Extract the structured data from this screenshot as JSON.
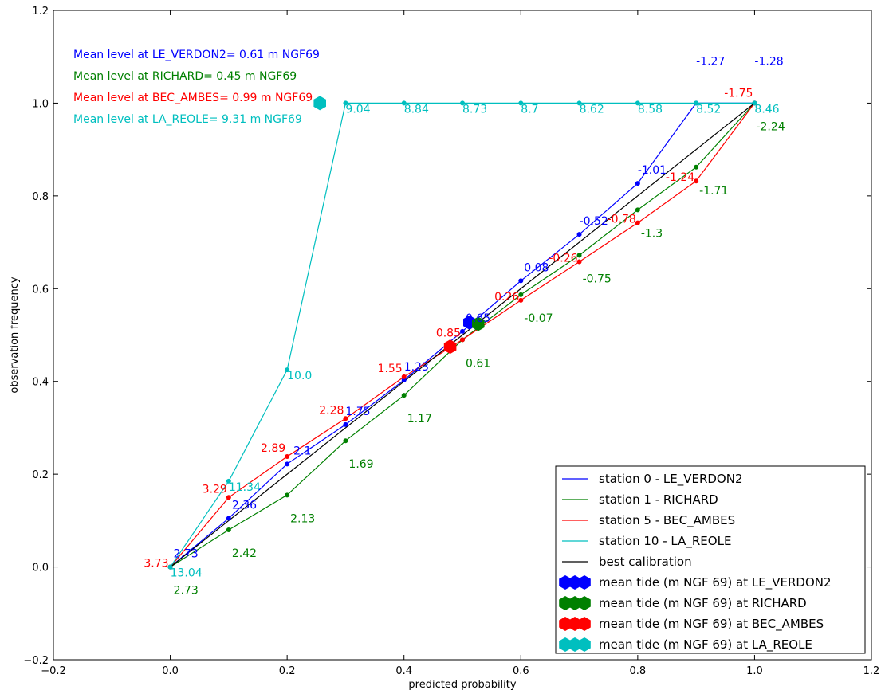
{
  "chart_data": {
    "type": "line",
    "xlabel": "predicted probability",
    "ylabel": "observation frequency",
    "xlim": [
      -0.2,
      1.2
    ],
    "ylim": [
      -0.2,
      1.2
    ],
    "x_ticks": [
      -0.2,
      0.0,
      0.2,
      0.4,
      0.6,
      0.8,
      1.0,
      1.2
    ],
    "y_ticks": [
      -0.2,
      0.0,
      0.2,
      0.4,
      0.6,
      0.8,
      1.0,
      1.2
    ],
    "x_tick_labels": [
      "−0.2",
      "0.0",
      "0.2",
      "0.4",
      "0.6",
      "0.8",
      "1.0",
      "1.2"
    ],
    "y_tick_labels": [
      "−0.2",
      "0.0",
      "0.2",
      "0.4",
      "0.6",
      "0.8",
      "1.0",
      "1.2"
    ],
    "grid": false,
    "legend_position": "bottom-right",
    "series": [
      {
        "name": "station 0 - LE_VERDON2",
        "color": "#0000ff",
        "x": [
          0.0,
          0.1,
          0.2,
          0.3,
          0.4,
          0.5,
          0.6,
          0.7,
          0.8,
          0.9,
          1.0
        ],
        "y": [
          0.0,
          0.105,
          0.222,
          0.307,
          0.403,
          0.508,
          0.617,
          0.717,
          0.827,
          1.0,
          1.0
        ],
        "point_labels": [
          "2.73",
          "2.36",
          "2.1",
          "1.75",
          "1.23",
          "0.65",
          "0.08",
          "-0.52",
          "-1.01",
          "-1.27",
          "-1.28"
        ],
        "label_dx": [
          4,
          4,
          8,
          0,
          0,
          4,
          4,
          0,
          0,
          0,
          0
        ],
        "label_dy": [
          -12,
          -12,
          -12,
          -12,
          -12,
          -12,
          -12,
          -12,
          -12,
          -48,
          -48
        ],
        "label_anchor": [
          "start",
          "start",
          "start",
          "start",
          "start",
          "start",
          "start",
          "start",
          "start",
          "start",
          "start"
        ]
      },
      {
        "name": "station 1 - RICHARD",
        "color": "#008000",
        "x": [
          0.0,
          0.1,
          0.2,
          0.3,
          0.4,
          0.5,
          0.6,
          0.7,
          0.8,
          0.9,
          1.0
        ],
        "y": [
          0.0,
          0.08,
          0.155,
          0.272,
          0.37,
          0.49,
          0.587,
          0.672,
          0.77,
          0.862,
          1.0
        ],
        "point_labels": [
          "2.73",
          "2.42",
          "2.13",
          "1.69",
          "1.17",
          "0.61",
          "-0.07",
          "-0.75",
          "-1.3",
          "-1.71",
          "-2.24"
        ],
        "label_dx": [
          4,
          4,
          4,
          4,
          4,
          4,
          4,
          4,
          4,
          4,
          2
        ],
        "label_dy": [
          34,
          34,
          34,
          34,
          34,
          34,
          34,
          34,
          34,
          34,
          34
        ],
        "label_anchor": [
          "start",
          "start",
          "start",
          "start",
          "start",
          "start",
          "start",
          "start",
          "start",
          "start",
          "start"
        ]
      },
      {
        "name": "station 5 - BEC_AMBES",
        "color": "#ff0000",
        "x": [
          0.0,
          0.1,
          0.2,
          0.3,
          0.4,
          0.5,
          0.6,
          0.7,
          0.8,
          0.9,
          1.0
        ],
        "y": [
          0.0,
          0.15,
          0.238,
          0.32,
          0.41,
          0.49,
          0.575,
          0.658,
          0.742,
          0.832,
          1.0
        ],
        "point_labels": [
          "3.73",
          "3.29",
          "2.89",
          "2.28",
          "1.55",
          "0.85",
          "0.26",
          "-0.26",
          "-0.78",
          "-1.24",
          "-1.75"
        ],
        "label_dx": [
          -2,
          -2,
          -2,
          -2,
          -2,
          -2,
          -2,
          -2,
          -2,
          -2,
          -2
        ],
        "label_dy": [
          0,
          -6,
          -6,
          -6,
          -6,
          -4,
          0,
          0,
          0,
          0,
          -8
        ],
        "label_anchor": [
          "end",
          "end",
          "end",
          "end",
          "end",
          "end",
          "end",
          "end",
          "end",
          "end",
          "end"
        ]
      },
      {
        "name": "station 10 - LA_REOLE",
        "color": "#00bfbf",
        "x": [
          0.0,
          0.1,
          0.2,
          0.3,
          0.4,
          0.5,
          0.6,
          0.7,
          0.8,
          0.9,
          1.0
        ],
        "y": [
          0.0,
          0.185,
          0.425,
          1.0,
          1.0,
          1.0,
          1.0,
          1.0,
          1.0,
          1.0,
          1.0
        ],
        "point_labels": [
          "13.04",
          "11.34",
          "10.0",
          "9.04",
          "8.84",
          "8.73",
          "8.7",
          "8.62",
          "8.58",
          "8.52",
          "8.46"
        ],
        "label_dx": [
          0,
          0,
          0,
          0,
          0,
          0,
          0,
          0,
          0,
          0,
          0
        ],
        "label_dy": [
          12,
          12,
          12,
          12,
          12,
          12,
          12,
          12,
          12,
          12,
          12
        ],
        "label_anchor": [
          "start",
          "start",
          "start",
          "start",
          "start",
          "start",
          "start",
          "start",
          "start",
          "start",
          "start"
        ]
      },
      {
        "name": "best calibration",
        "color": "#000000",
        "x": [
          0.0,
          1.0
        ],
        "y": [
          0.0,
          1.0
        ]
      }
    ],
    "mean_tide_markers": [
      {
        "name": "mean tide (m NGF 69) at LE_VERDON2",
        "color": "#0000ff",
        "x": 0.512,
        "y": 0.527
      },
      {
        "name": "mean tide (m NGF 69) at RICHARD",
        "color": "#008000",
        "x": 0.527,
        "y": 0.524
      },
      {
        "name": "mean tide (m NGF 69) at BEC_AMBES",
        "color": "#ff0000",
        "x": 0.479,
        "y": 0.475
      },
      {
        "name": "mean tide (m NGF 69) at LA_REOLE",
        "color": "#00bfbf",
        "x": 0.256,
        "y": 1.0
      }
    ],
    "annotations": [
      {
        "text": "Mean level at  LE_VERDON2= 0.61 m NGF69",
        "color": "#0000ff"
      },
      {
        "text": "Mean level at  RICHARD= 0.45 m NGF69",
        "color": "#008000"
      },
      {
        "text": "Mean level at  BEC_AMBES= 0.99 m NGF69",
        "color": "#ff0000"
      },
      {
        "text": "Mean level at  LA_REOLE= 9.31 m NGF69",
        "color": "#00bfbf"
      }
    ]
  }
}
